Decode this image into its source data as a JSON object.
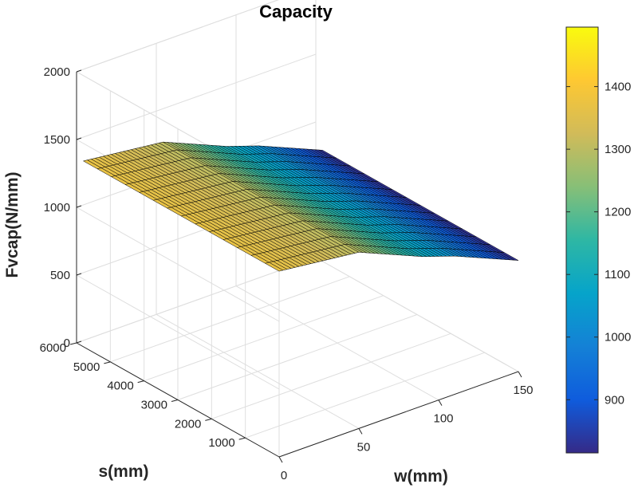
{
  "chart_data": {
    "type": "surface",
    "title": "Capacity",
    "xlabel": "w(mm)",
    "ylabel": "s(mm)",
    "zlabel": "Fvcap(N/mm)",
    "xlim": [
      0,
      150
    ],
    "ylim": [
      0,
      6000
    ],
    "zlim": [
      0,
      2000
    ],
    "x_ticks": [
      0,
      50,
      100,
      150
    ],
    "y_ticks": [
      1000,
      2000,
      3000,
      4000,
      5000,
      6000
    ],
    "z_ticks": [
      0,
      500,
      1000,
      1500,
      2000
    ],
    "grid": true,
    "colormap": "parula",
    "colorbar": {
      "range": [
        815,
        1495
      ],
      "ticks": [
        900,
        1000,
        1100,
        1200,
        1300,
        1400
      ],
      "placement": "right"
    },
    "surface": {
      "w_range": [
        0,
        150
      ],
      "s_range": [
        0,
        5800
      ],
      "profile_w": [
        0,
        50,
        70,
        90,
        110,
        130,
        150
      ],
      "profile_fvcap": [
        1370,
        1300,
        1200,
        1100,
        1020,
        920,
        820
      ]
    },
    "colors": {
      "grid": "#dedede",
      "axis": "#262626",
      "mesh_edge": "#000000"
    }
  }
}
